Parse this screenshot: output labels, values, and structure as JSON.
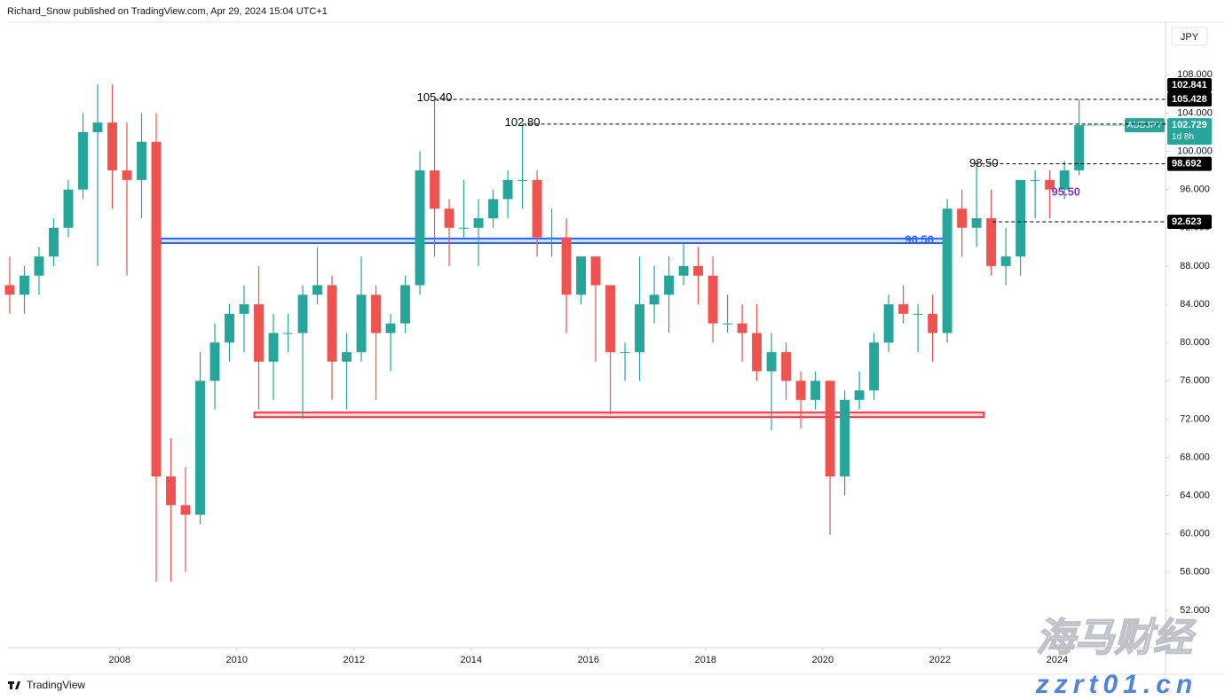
{
  "header": {
    "attribution": "Richard_Snow published on TradingView.com, Apr 29, 2024 15:04 UTC+1",
    "logo": "TradingView"
  },
  "watermark": {
    "brand": "海马财经",
    "site": "zzrt01.cn"
  },
  "chart_data": {
    "type": "candlestick",
    "symbol": "AUDJPY",
    "currency": "JPY",
    "up_color": "#26a69a",
    "down_color": "#ef5350",
    "grid": false,
    "xlim": [
      2006.08,
      2025.85
    ],
    "xticks": [
      2008,
      2010,
      2012,
      2014,
      2016,
      2018,
      2020,
      2022,
      2024
    ],
    "ylim": [
      48.1,
      113.5
    ],
    "yticks": [
      {
        "value": 52,
        "label": "52.000"
      },
      {
        "value": 56,
        "label": "56.000"
      },
      {
        "value": 60,
        "label": "60.000"
      },
      {
        "value": 64,
        "label": "64.000"
      },
      {
        "value": 68,
        "label": "68.000"
      },
      {
        "value": 72,
        "label": "72.000"
      },
      {
        "value": 76,
        "label": "76.000"
      },
      {
        "value": 80,
        "label": "80.000"
      },
      {
        "value": 84,
        "label": "84.000"
      },
      {
        "value": 88,
        "label": "88.000"
      },
      {
        "value": 92,
        "label": "92.000"
      },
      {
        "value": 96,
        "label": "96.000"
      },
      {
        "value": 100,
        "label": "100.000"
      },
      {
        "value": 104,
        "label": "104.000"
      },
      {
        "value": 108,
        "label": "108.000"
      }
    ],
    "candles": [
      [
        2006.125,
        86,
        89,
        83,
        85
      ],
      [
        2006.375,
        85,
        88,
        83,
        87
      ],
      [
        2006.625,
        87,
        90,
        85,
        89
      ],
      [
        2006.875,
        89,
        93,
        88,
        92
      ],
      [
        2007.125,
        92,
        97,
        91,
        96
      ],
      [
        2007.375,
        96,
        104,
        95,
        102
      ],
      [
        2007.625,
        102,
        107,
        88,
        103
      ],
      [
        2007.875,
        103,
        107,
        94,
        98
      ],
      [
        2008.125,
        98,
        103,
        87,
        97
      ],
      [
        2008.375,
        97,
        104,
        93,
        101
      ],
      [
        2008.625,
        101,
        104,
        55,
        66
      ],
      [
        2008.875,
        66,
        70,
        55,
        63
      ],
      [
        2009.125,
        63,
        67,
        56,
        62
      ],
      [
        2009.375,
        62,
        79,
        61,
        76
      ],
      [
        2009.625,
        76,
        82,
        73,
        80
      ],
      [
        2009.875,
        80,
        84,
        78,
        83
      ],
      [
        2010.125,
        83,
        86,
        79,
        84
      ],
      [
        2010.375,
        84,
        88,
        73,
        78
      ],
      [
        2010.625,
        78,
        83,
        74,
        81
      ],
      [
        2010.875,
        81,
        83,
        79,
        81
      ],
      [
        2011.125,
        81,
        86,
        72,
        85
      ],
      [
        2011.375,
        85,
        90,
        84,
        86
      ],
      [
        2011.625,
        86,
        87,
        74,
        78
      ],
      [
        2011.875,
        78,
        81,
        73,
        79
      ],
      [
        2012.125,
        79,
        89,
        78,
        85
      ],
      [
        2012.375,
        85,
        86,
        74,
        81
      ],
      [
        2012.625,
        81,
        83,
        77,
        82
      ],
      [
        2012.875,
        82,
        87,
        81,
        86
      ],
      [
        2013.125,
        86,
        100,
        85,
        98
      ],
      [
        2013.375,
        98,
        105.4,
        89,
        94
      ],
      [
        2013.625,
        94,
        95,
        88,
        92
      ],
      [
        2013.875,
        92,
        97,
        91,
        92
      ],
      [
        2014.125,
        92,
        95,
        88,
        93
      ],
      [
        2014.375,
        93,
        96,
        92,
        95
      ],
      [
        2014.625,
        95,
        98,
        93,
        97
      ],
      [
        2014.875,
        97,
        102.8,
        94,
        97
      ],
      [
        2015.125,
        97,
        98,
        89,
        91
      ],
      [
        2015.375,
        91,
        94,
        89,
        91
      ],
      [
        2015.625,
        91,
        93,
        81,
        85
      ],
      [
        2015.875,
        85,
        89,
        84,
        89
      ],
      [
        2016.125,
        89,
        89,
        78,
        86
      ],
      [
        2016.375,
        86,
        86,
        72.5,
        79
      ],
      [
        2016.625,
        79,
        80,
        76,
        79
      ],
      [
        2016.875,
        79,
        89,
        76,
        84
      ],
      [
        2017.125,
        84,
        88,
        82,
        85
      ],
      [
        2017.375,
        85,
        89,
        81,
        87
      ],
      [
        2017.625,
        87,
        90.3,
        86,
        88
      ],
      [
        2017.875,
        88,
        90,
        84,
        87
      ],
      [
        2018.125,
        87,
        89,
        80,
        82
      ],
      [
        2018.375,
        82,
        85,
        81,
        82
      ],
      [
        2018.625,
        82,
        84,
        78,
        81
      ],
      [
        2018.875,
        81,
        84,
        76,
        77
      ],
      [
        2019.125,
        77,
        81,
        70.8,
        79
      ],
      [
        2019.375,
        79,
        80,
        74,
        76
      ],
      [
        2019.625,
        76,
        77,
        71,
        74
      ],
      [
        2019.875,
        74,
        77,
        73,
        76
      ],
      [
        2020.125,
        76,
        76,
        59.9,
        66
      ],
      [
        2020.375,
        66,
        75,
        64,
        74
      ],
      [
        2020.625,
        74,
        77,
        73,
        75
      ],
      [
        2020.875,
        75,
        81,
        74,
        80
      ],
      [
        2021.125,
        80,
        85,
        79,
        84
      ],
      [
        2021.375,
        84,
        86,
        82,
        83
      ],
      [
        2021.625,
        83,
        84,
        79,
        83
      ],
      [
        2021.875,
        83,
        85,
        78,
        81
      ],
      [
        2022.125,
        81,
        95,
        80,
        94
      ],
      [
        2022.375,
        94,
        96,
        89,
        92
      ],
      [
        2022.625,
        92,
        98.5,
        90,
        93
      ],
      [
        2022.875,
        93,
        96,
        87,
        88
      ],
      [
        2023.125,
        88,
        92,
        86,
        89
      ],
      [
        2023.375,
        89,
        97,
        87,
        97
      ],
      [
        2023.625,
        97,
        98,
        93,
        97
      ],
      [
        2023.875,
        97,
        98,
        93,
        96
      ],
      [
        2024.125,
        96,
        99,
        95,
        98
      ],
      [
        2024.375,
        98,
        105.428,
        97.5,
        102.729
      ]
    ],
    "hlines": [
      {
        "value": 105.428,
        "label": "105.428",
        "from": 2013.375
      },
      {
        "value": 102.841,
        "label": "102.841",
        "from": 2014.875
      },
      {
        "value": 98.692,
        "label": "98.692",
        "from": 2022.6
      },
      {
        "value": 92.623,
        "label": "92.623",
        "from": 2022.9
      }
    ],
    "current": {
      "value": 102.729,
      "label": "102.729",
      "countdown": "1d 8h",
      "from": 2024.45
    },
    "text_annotations": [
      {
        "value": 105.4,
        "label": "105.40",
        "x": 2013.375,
        "color": "#000000"
      },
      {
        "value": 102.8,
        "label": "102.80",
        "x": 2014.875,
        "color": "#000000"
      },
      {
        "value": 98.5,
        "label": "98.50",
        "x": 2022.75,
        "color": "#000000"
      },
      {
        "value": 95.5,
        "label": "95.50",
        "x": 2024.15,
        "color": "#7b3fb5"
      },
      {
        "value": 90.5,
        "label": "90.50",
        "x": 2021.65,
        "color": "#2962ff"
      }
    ],
    "zones": [
      {
        "from": 2008.7,
        "to": 2022.06,
        "low": 90.4,
        "high": 90.88,
        "color": "#2962ff"
      },
      {
        "from": 2010.3,
        "to": 2022.75,
        "low": 72.2,
        "high": 72.7,
        "color": "#f23645"
      }
    ]
  }
}
